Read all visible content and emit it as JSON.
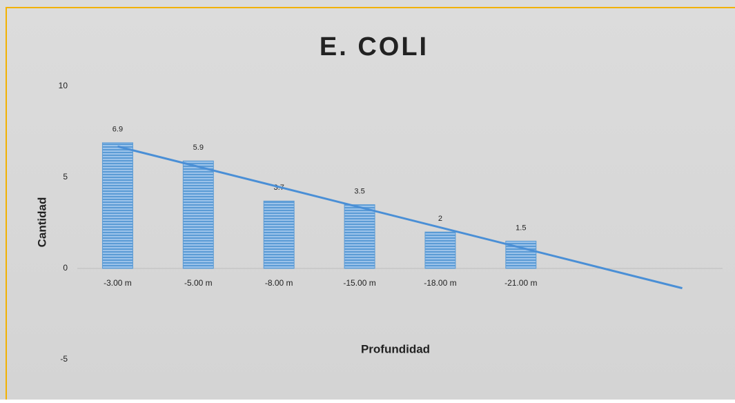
{
  "chart_data": {
    "type": "bar",
    "title": "E. COLI",
    "x_label": "Profundidad",
    "y_label": "Cantidad",
    "categories": [
      "-3.00 m",
      "-5.00 m",
      "-8.00 m",
      "-15.00 m",
      "-18.00 m",
      "-21.00 m",
      null,
      null
    ],
    "values": [
      6.9,
      5.9,
      3.7,
      3.5,
      2,
      1.5,
      null,
      null
    ],
    "color": "#5b9bd5",
    "trendline": true,
    "trendline_color": "#4a8fd6",
    "ylim": [
      -5,
      10
    ],
    "yticks": [
      -5,
      0,
      5,
      10
    ],
    "grid": false,
    "data_labels": true
  }
}
